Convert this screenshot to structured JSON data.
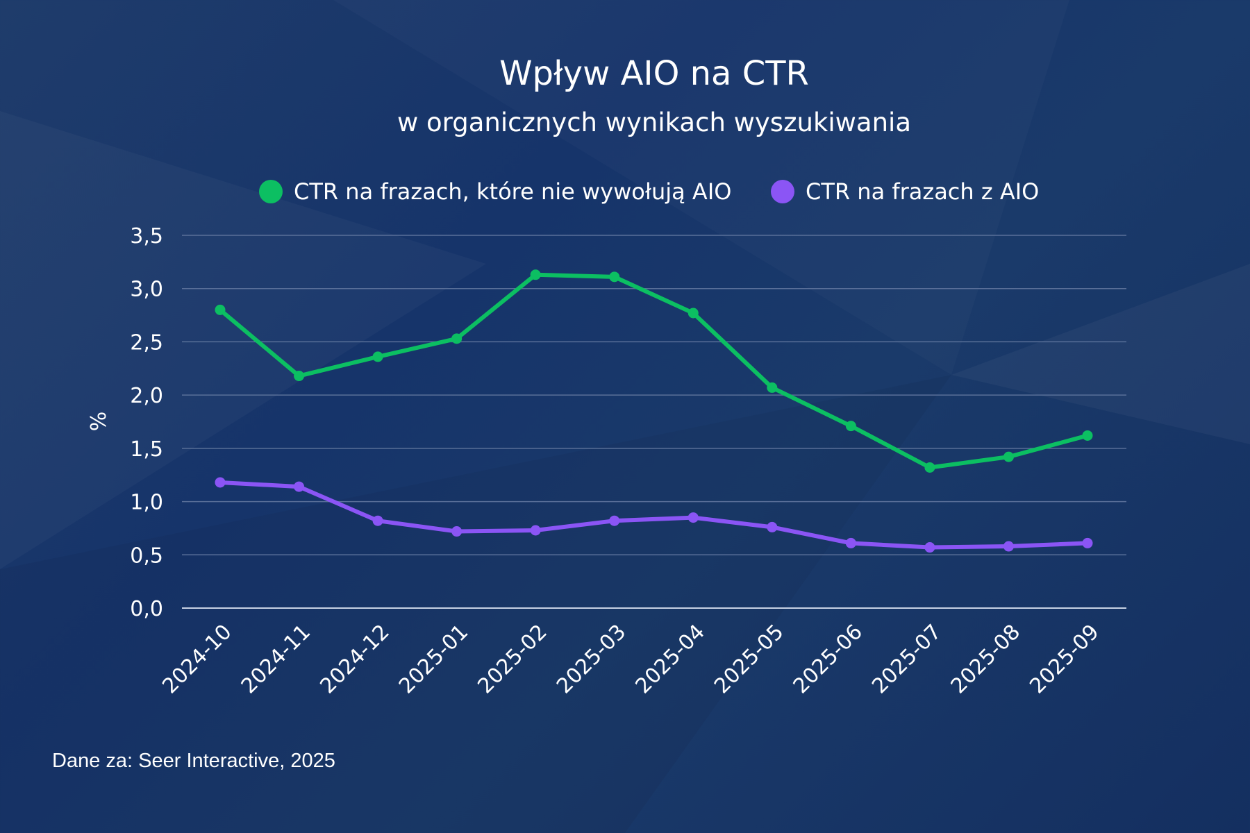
{
  "chart_data": {
    "type": "line",
    "title": "Wpływ AIO na CTR",
    "subtitle": "w organicznych wynikach wyszukiwania",
    "ylabel": "%",
    "xlabel": "",
    "ylim": [
      0,
      3.5
    ],
    "yticks": [
      "0,0",
      "0,5",
      "1,0",
      "1,5",
      "2,0",
      "2,5",
      "3,0",
      "3,5"
    ],
    "grid": true,
    "legend_position": "top",
    "categories": [
      "2024-10",
      "2024-11",
      "2024-12",
      "2025-01",
      "2025-02",
      "2025-03",
      "2025-04",
      "2025-05",
      "2025-06",
      "2025-07",
      "2025-08",
      "2025-09"
    ],
    "series": [
      {
        "name": "CTR na frazach, które nie wywołują AIO",
        "color": "#0cbf62",
        "values": [
          2.8,
          2.18,
          2.36,
          2.53,
          3.13,
          3.11,
          2.77,
          2.07,
          1.71,
          1.32,
          1.42,
          1.62
        ]
      },
      {
        "name": "CTR na frazach z AIO",
        "color": "#8b55f5",
        "values": [
          1.18,
          1.14,
          0.82,
          0.72,
          0.73,
          0.82,
          0.85,
          0.76,
          0.61,
          0.57,
          0.58,
          0.61
        ]
      }
    ]
  },
  "source": "Dane za: Seer Interactive, 2025",
  "colors": {
    "background": "#1a3868",
    "grid": "#5a7099"
  }
}
